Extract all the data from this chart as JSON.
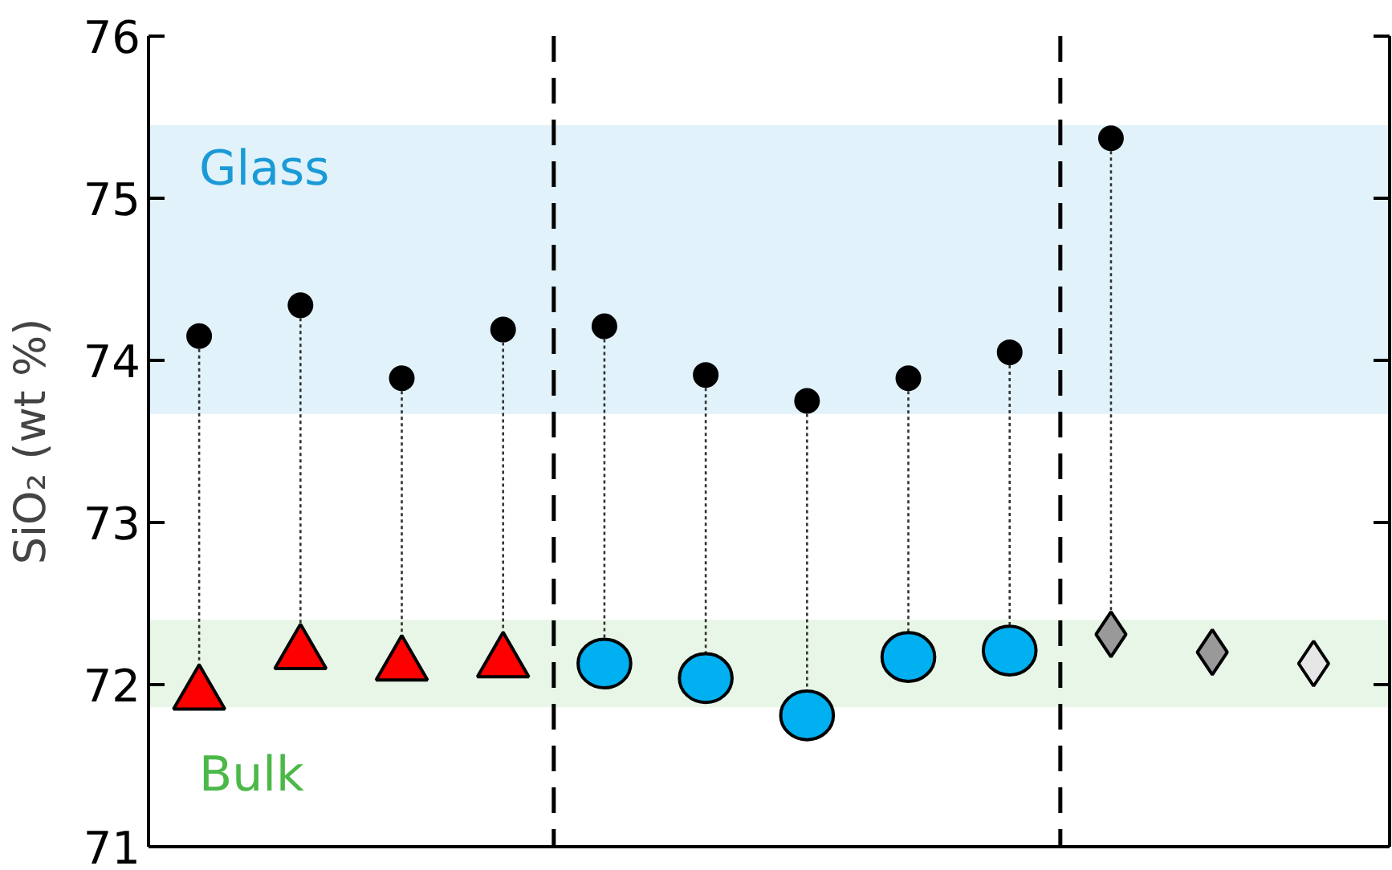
{
  "chart_data": {
    "type": "scatter",
    "ylabel": "SiO₂ (wt %)",
    "categories": [
      null,
      null,
      null,
      null,
      null,
      null,
      null,
      null,
      null,
      null,
      null,
      null
    ],
    "series": [
      {
        "color": "#000000",
        "marker": "circle",
        "line_style": "dotted",
        "values": [
          74.15,
          74.34,
          73.89,
          74.19,
          74.21,
          73.91,
          73.75,
          73.89,
          74.05,
          75.37,
          null,
          null
        ]
      },
      {
        "color": "#ff0000",
        "marker": "triangle",
        "values": [
          71.94,
          72.19,
          72.12,
          72.14,
          null,
          null,
          null,
          null,
          null,
          null,
          null,
          null
        ]
      },
      {
        "color": "#00b0f0",
        "marker": "circle",
        "values": [
          null,
          null,
          null,
          null,
          72.13,
          72.04,
          71.81,
          72.17,
          72.21,
          null,
          null,
          null
        ]
      },
      {
        "color": "#999999",
        "marker": "diamond",
        "colors": [
          null,
          null,
          null,
          null,
          null,
          null,
          null,
          null,
          null,
          null,
          null,
          "#e6e6e6"
        ],
        "values": [
          null,
          null,
          null,
          null,
          null,
          null,
          null,
          null,
          null,
          72.31,
          72.2,
          72.13
        ]
      }
    ],
    "ylim": [
      71,
      76
    ],
    "yticks": [
      71,
      72,
      73,
      74,
      75,
      76
    ],
    "bands": [
      {
        "axis": "y",
        "from": 73.67,
        "to": 75.45,
        "label": "Glass",
        "color": "#1a9ad6"
      },
      {
        "axis": "y",
        "from": 71.86,
        "to": 72.4,
        "label": "Bulk",
        "color": "#4cb848"
      }
    ],
    "tick_labels": "y",
    "grid": false
  }
}
